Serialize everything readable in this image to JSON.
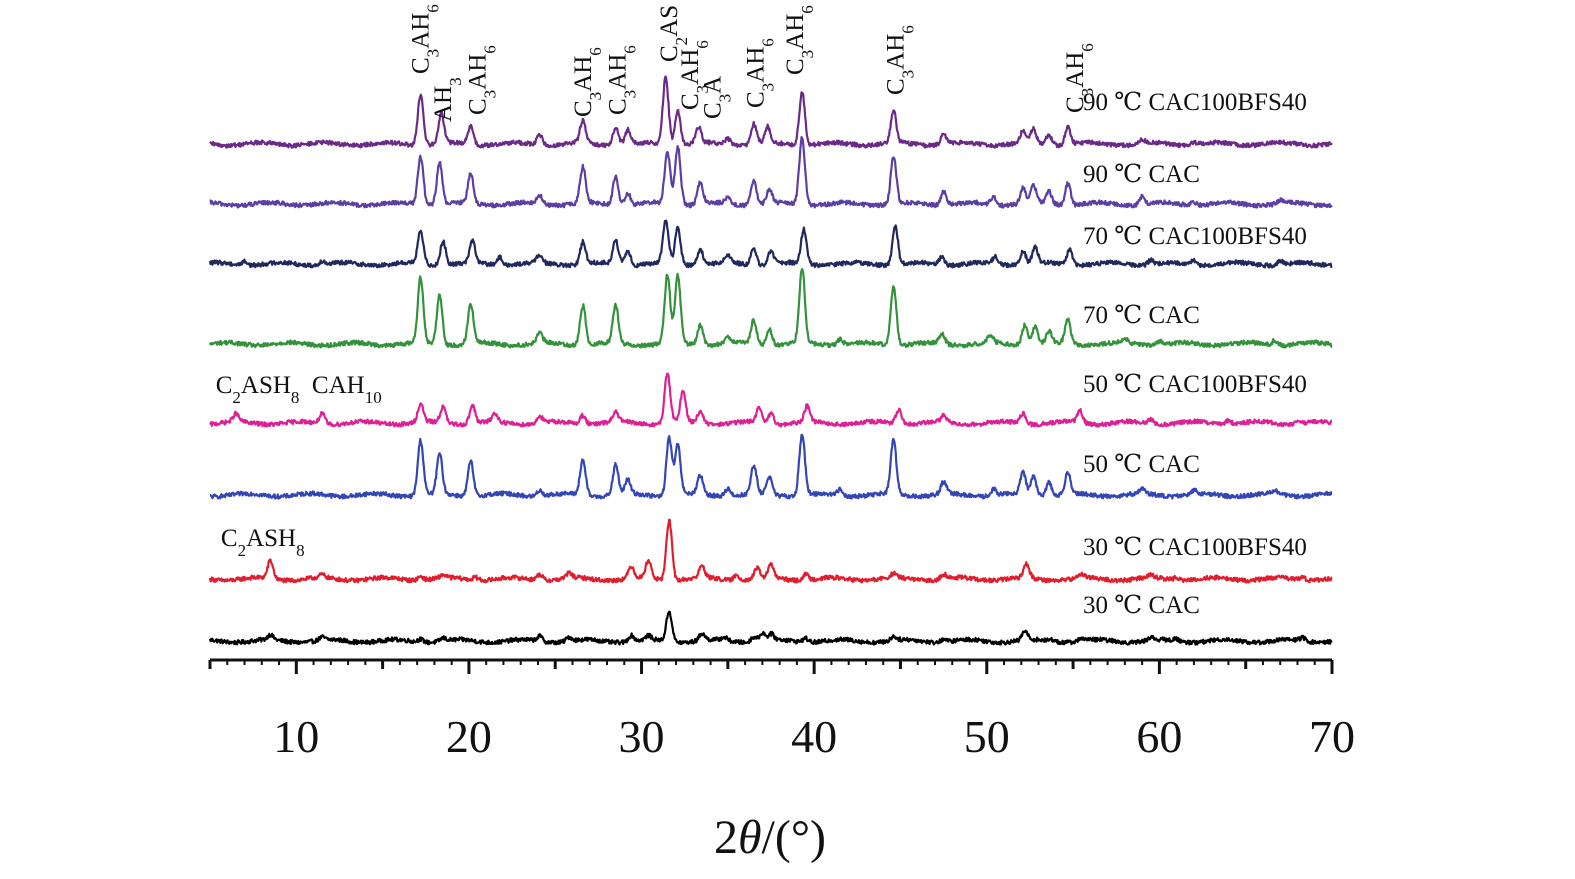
{
  "chart_data": {
    "type": "line",
    "title": "",
    "xlabel": "2θ/(°)",
    "ylabel": "",
    "xlim": [
      5,
      70
    ],
    "x_ticks": [
      10,
      20,
      30,
      40,
      50,
      60,
      70
    ],
    "x_minor_step": 5,
    "grid": false,
    "legend": "inline-right",
    "series": [
      {
        "name": "30 ℃ CAC",
        "color": "#000000",
        "offset": 0,
        "peaks": [
          [
            8.5,
            5
          ],
          [
            11.5,
            3
          ],
          [
            17.2,
            3
          ],
          [
            18.5,
            3
          ],
          [
            24.1,
            5
          ],
          [
            25.8,
            4
          ],
          [
            29.4,
            6
          ],
          [
            30.4,
            4
          ],
          [
            31.6,
            30
          ],
          [
            33.5,
            7
          ],
          [
            34.8,
            3
          ],
          [
            36.5,
            5
          ],
          [
            37,
            8
          ],
          [
            37.5,
            6
          ],
          [
            39.5,
            4
          ],
          [
            44.6,
            4
          ],
          [
            47.5,
            3
          ],
          [
            52.2,
            9
          ],
          [
            53.8,
            2
          ],
          [
            55.5,
            3
          ],
          [
            59.5,
            3
          ],
          [
            61,
            2
          ],
          [
            68.3,
            3
          ]
        ]
      },
      {
        "name": "30 ℃ CAC100BFS40",
        "color": "#e01e2d",
        "offset": 62,
        "peaks": [
          [
            8.5,
            18
          ],
          [
            11.5,
            3
          ],
          [
            17.2,
            4
          ],
          [
            18.5,
            3
          ],
          [
            20.4,
            3
          ],
          [
            24.1,
            6
          ],
          [
            25.8,
            5
          ],
          [
            29.4,
            12
          ],
          [
            30.4,
            18
          ],
          [
            31.6,
            60
          ],
          [
            33.5,
            12
          ],
          [
            35.5,
            5
          ],
          [
            36.7,
            10
          ],
          [
            37.5,
            13
          ],
          [
            39.5,
            6
          ],
          [
            44.6,
            4
          ],
          [
            47.5,
            5
          ],
          [
            52.3,
            14
          ],
          [
            55.5,
            4
          ],
          [
            59.5,
            3
          ],
          [
            61,
            3
          ],
          [
            68.3,
            3
          ]
        ]
      },
      {
        "name": "50 ℃ CAC",
        "color": "#3346b4",
        "offset": 146,
        "peaks": [
          [
            17.2,
            55
          ],
          [
            18.3,
            40
          ],
          [
            20.1,
            35
          ],
          [
            24.1,
            6
          ],
          [
            26.6,
            35
          ],
          [
            28.5,
            30
          ],
          [
            29.2,
            14
          ],
          [
            31.6,
            58
          ],
          [
            32.1,
            50
          ],
          [
            33.4,
            18
          ],
          [
            35,
            8
          ],
          [
            36.5,
            28
          ],
          [
            37.4,
            18
          ],
          [
            39.3,
            62
          ],
          [
            41.5,
            6
          ],
          [
            44.6,
            55
          ],
          [
            47.5,
            12
          ],
          [
            50.4,
            6
          ],
          [
            52.1,
            22
          ],
          [
            52.7,
            20
          ],
          [
            53.6,
            14
          ],
          [
            54.7,
            22
          ],
          [
            59,
            5
          ],
          [
            62,
            4
          ],
          [
            66.7,
            4
          ]
        ]
      },
      {
        "name": "50 ℃ CAC100BFS40",
        "color": "#dc2196",
        "offset": 218,
        "peaks": [
          [
            6.5,
            8
          ],
          [
            11.5,
            10
          ],
          [
            17.2,
            18
          ],
          [
            18.5,
            16
          ],
          [
            20.2,
            18
          ],
          [
            21.5,
            8
          ],
          [
            24.1,
            7
          ],
          [
            26.6,
            9
          ],
          [
            28.5,
            10
          ],
          [
            31.5,
            50
          ],
          [
            32.4,
            30
          ],
          [
            33.4,
            12
          ],
          [
            36.8,
            14
          ],
          [
            37.5,
            10
          ],
          [
            39.6,
            16
          ],
          [
            44.9,
            14
          ],
          [
            47.5,
            6
          ],
          [
            52.1,
            10
          ],
          [
            55.4,
            12
          ],
          [
            59.5,
            4
          ],
          [
            64,
            4
          ],
          [
            68,
            3
          ]
        ]
      },
      {
        "name": "70 ℃ CAC",
        "color": "#34923c",
        "offset": 297,
        "peaks": [
          [
            17.2,
            65
          ],
          [
            18.3,
            50
          ],
          [
            20.1,
            40
          ],
          [
            24.1,
            10
          ],
          [
            26.6,
            40
          ],
          [
            28.5,
            38
          ],
          [
            31.5,
            68
          ],
          [
            32.1,
            68
          ],
          [
            33.4,
            20
          ],
          [
            35,
            7
          ],
          [
            36.5,
            24
          ],
          [
            37.4,
            16
          ],
          [
            39.3,
            75
          ],
          [
            41.5,
            6
          ],
          [
            44.6,
            60
          ],
          [
            47.4,
            10
          ],
          [
            50.2,
            8
          ],
          [
            52.2,
            20
          ],
          [
            52.8,
            18
          ],
          [
            53.6,
            12
          ],
          [
            54.7,
            24
          ],
          [
            58,
            4
          ],
          [
            60,
            4
          ],
          [
            66.7,
            5
          ]
        ]
      },
      {
        "name": "70 ℃ CAC100BFS40",
        "color": "#20285c",
        "offset": 377,
        "peaks": [
          [
            7,
            4
          ],
          [
            11.5,
            4
          ],
          [
            17.2,
            32
          ],
          [
            18.5,
            24
          ],
          [
            20.2,
            22
          ],
          [
            21.8,
            8
          ],
          [
            24.1,
            8
          ],
          [
            26.6,
            22
          ],
          [
            28.5,
            24
          ],
          [
            29.2,
            14
          ],
          [
            31.4,
            42
          ],
          [
            32.1,
            36
          ],
          [
            33.4,
            16
          ],
          [
            35,
            8
          ],
          [
            36.5,
            16
          ],
          [
            37.5,
            14
          ],
          [
            39.4,
            34
          ],
          [
            44.7,
            38
          ],
          [
            47.4,
            8
          ],
          [
            50.5,
            7
          ],
          [
            52.1,
            14
          ],
          [
            52.8,
            16
          ],
          [
            54.8,
            16
          ],
          [
            59.5,
            5
          ],
          [
            62,
            4
          ],
          [
            67,
            4
          ]
        ]
      },
      {
        "name": "90 ℃ CAC",
        "color": "#5c3fa3",
        "offset": 437,
        "peaks": [
          [
            17.2,
            48
          ],
          [
            18.3,
            42
          ],
          [
            20.1,
            30
          ],
          [
            24.1,
            8
          ],
          [
            26.6,
            36
          ],
          [
            28.5,
            28
          ],
          [
            29.2,
            12
          ],
          [
            31.5,
            52
          ],
          [
            32.1,
            58
          ],
          [
            33.4,
            22
          ],
          [
            35,
            6
          ],
          [
            36.5,
            24
          ],
          [
            37.4,
            14
          ],
          [
            39.3,
            68
          ],
          [
            44.6,
            48
          ],
          [
            47.5,
            14
          ],
          [
            50.4,
            8
          ],
          [
            52.1,
            16
          ],
          [
            52.7,
            18
          ],
          [
            53.6,
            12
          ],
          [
            54.7,
            22
          ],
          [
            59,
            8
          ],
          [
            62,
            3
          ],
          [
            67,
            3
          ]
        ]
      },
      {
        "name": "90 ℃ CAC100BFS40",
        "color": "#6a2a87",
        "offset": 497,
        "peaks": [
          [
            17.2,
            50
          ],
          [
            18.4,
            30
          ],
          [
            20.1,
            18
          ],
          [
            24.1,
            10
          ],
          [
            26.6,
            22
          ],
          [
            28.5,
            18
          ],
          [
            29.2,
            14
          ],
          [
            31.4,
            68
          ],
          [
            32.1,
            34
          ],
          [
            33.3,
            16
          ],
          [
            35,
            6
          ],
          [
            36.5,
            20
          ],
          [
            37.3,
            16
          ],
          [
            39.3,
            54
          ],
          [
            44.6,
            32
          ],
          [
            47.5,
            10
          ],
          [
            52.1,
            12
          ],
          [
            52.7,
            14
          ],
          [
            53.6,
            10
          ],
          [
            54.7,
            18
          ],
          [
            59,
            4
          ],
          [
            62,
            3
          ]
        ]
      }
    ],
    "phase_annotations": [
      {
        "text": "C3AH6",
        "x": 17.2,
        "rotated": true
      },
      {
        "text": "AH3",
        "x": 18.5,
        "rotated": true
      },
      {
        "text": "C3AH6",
        "x": 20.5,
        "rotated": true
      },
      {
        "text": "C3AH6",
        "x": 26.6,
        "rotated": true
      },
      {
        "text": "C3AH6",
        "x": 28.6,
        "rotated": true
      },
      {
        "text": "C2AS",
        "x": 31.6,
        "rotated": true
      },
      {
        "text": "C3AH6",
        "x": 32.8,
        "rotated": true
      },
      {
        "text": "C3A",
        "x": 34.1,
        "rotated": true
      },
      {
        "text": "C3AH6",
        "x": 36.6,
        "rotated": true
      },
      {
        "text": "C3AH6",
        "x": 38.9,
        "rotated": true
      },
      {
        "text": "C3AH6",
        "x": 44.7,
        "rotated": true
      },
      {
        "text": "C3AH6",
        "x": 55.1,
        "rotated": true
      },
      {
        "text": "C2ASH8  CAH10",
        "x": 5.1,
        "rotated": false
      },
      {
        "text": "C2ASH8",
        "x": 5.4,
        "rotated": false
      }
    ]
  }
}
